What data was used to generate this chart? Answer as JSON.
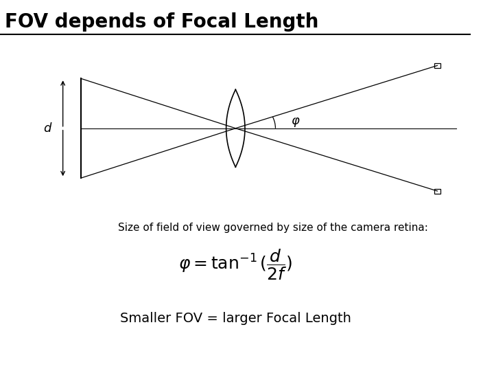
{
  "title": "FOV depends of Focal Length",
  "subtitle": "Smaller FOV = larger Focal Length",
  "fov_text": "Size of field of view governed by size of the camera retina:",
  "formula": "$\\varphi = \\tan^{-1}(\\dfrac{d}{2f})$",
  "bg_color": "#ffffff",
  "line_color": "#000000",
  "title_fontsize": 20,
  "subtitle_fontsize": 14,
  "formula_fontsize": 18,
  "fov_text_fontsize": 11
}
